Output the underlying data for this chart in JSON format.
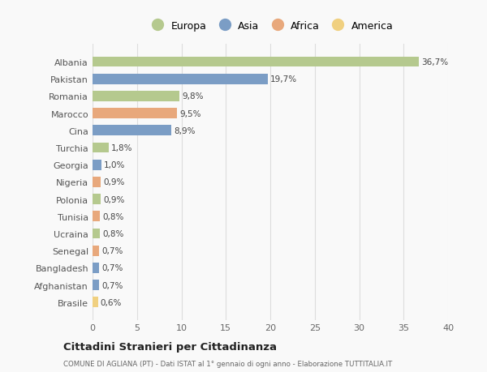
{
  "countries": [
    "Albania",
    "Pakistan",
    "Romania",
    "Marocco",
    "Cina",
    "Turchia",
    "Georgia",
    "Nigeria",
    "Polonia",
    "Tunisia",
    "Ucraina",
    "Senegal",
    "Bangladesh",
    "Afghanistan",
    "Brasile"
  ],
  "values": [
    36.7,
    19.7,
    9.8,
    9.5,
    8.9,
    1.8,
    1.0,
    0.9,
    0.9,
    0.8,
    0.8,
    0.7,
    0.7,
    0.7,
    0.6
  ],
  "labels": [
    "36,7%",
    "19,7%",
    "9,8%",
    "9,5%",
    "8,9%",
    "1,8%",
    "1,0%",
    "0,9%",
    "0,9%",
    "0,8%",
    "0,8%",
    "0,7%",
    "0,7%",
    "0,7%",
    "0,6%"
  ],
  "continents": [
    "Europa",
    "Asia",
    "Europa",
    "Africa",
    "Asia",
    "Europa",
    "Asia",
    "Africa",
    "Europa",
    "Africa",
    "Europa",
    "Africa",
    "Asia",
    "Asia",
    "America"
  ],
  "colors": {
    "Europa": "#b5c98e",
    "Asia": "#7b9dc5",
    "Africa": "#e8a87c",
    "America": "#f0d080"
  },
  "legend_order": [
    "Europa",
    "Asia",
    "Africa",
    "America"
  ],
  "title": "Cittadini Stranieri per Cittadinanza",
  "subtitle": "COMUNE DI AGLIANA (PT) - Dati ISTAT al 1° gennaio di ogni anno - Elaborazione TUTTITALIA.IT",
  "xlim": [
    0,
    40
  ],
  "xticks": [
    0,
    5,
    10,
    15,
    20,
    25,
    30,
    35,
    40
  ],
  "background_color": "#f9f9f9",
  "grid_color": "#dddddd",
  "bar_height": 0.6
}
